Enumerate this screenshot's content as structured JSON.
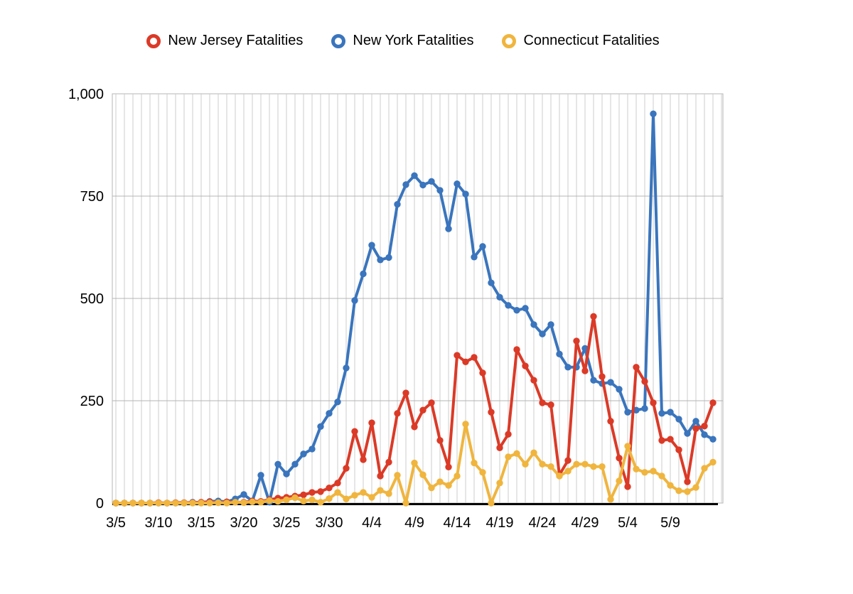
{
  "legend": {
    "items": [
      {
        "label": "New Jersey Fatalities",
        "color": "#db3a27"
      },
      {
        "label": "New York Fatalities",
        "color": "#3a75bd"
      },
      {
        "label": "Connecticut Fatalities",
        "color": "#f0b53e"
      }
    ]
  },
  "colors": {
    "background": "#ffffff",
    "grid_vertical": "#cccccc",
    "grid_horizontal": "#b5b5b5",
    "plot_border": "#b5b5b5",
    "axis_line": "#000000",
    "text": "#000000"
  },
  "chart_data": {
    "type": "line",
    "title": "",
    "xlabel": "",
    "ylabel": "",
    "ylim": [
      0,
      1000
    ],
    "grid": "daily vertical gridlines; horizontal gridlines every 250",
    "legend_position": "top",
    "marker": "filled-circle",
    "dates": [
      "3/5",
      "3/6",
      "3/7",
      "3/8",
      "3/9",
      "3/10",
      "3/11",
      "3/12",
      "3/13",
      "3/14",
      "3/15",
      "3/16",
      "3/17",
      "3/18",
      "3/19",
      "3/20",
      "3/21",
      "3/22",
      "3/23",
      "3/24",
      "3/25",
      "3/26",
      "3/27",
      "3/28",
      "3/29",
      "3/30",
      "3/31",
      "4/1",
      "4/2",
      "4/3",
      "4/4",
      "4/5",
      "4/6",
      "4/7",
      "4/8",
      "4/9",
      "4/10",
      "4/11",
      "4/12",
      "4/13",
      "4/14",
      "4/15",
      "4/16",
      "4/17",
      "4/18",
      "4/19",
      "4/20",
      "4/21",
      "4/22",
      "4/23",
      "4/24",
      "4/25",
      "4/26",
      "4/27",
      "4/28",
      "4/29",
      "4/30",
      "5/1",
      "5/2",
      "5/3",
      "5/4",
      "5/5",
      "5/6",
      "5/7",
      "5/8",
      "5/9",
      "5/10",
      "5/11",
      "5/12",
      "5/13",
      "5/14"
    ],
    "x_ticks": [
      {
        "day_index": 0,
        "label": "3/5"
      },
      {
        "day_index": 5,
        "label": "3/10"
      },
      {
        "day_index": 10,
        "label": "3/15"
      },
      {
        "day_index": 15,
        "label": "3/20"
      },
      {
        "day_index": 20,
        "label": "3/25"
      },
      {
        "day_index": 25,
        "label": "3/30"
      },
      {
        "day_index": 30,
        "label": "4/4"
      },
      {
        "day_index": 35,
        "label": "4/9"
      },
      {
        "day_index": 40,
        "label": "4/14"
      },
      {
        "day_index": 45,
        "label": "4/19"
      },
      {
        "day_index": 50,
        "label": "4/24"
      },
      {
        "day_index": 55,
        "label": "4/29"
      },
      {
        "day_index": 60,
        "label": "5/4"
      },
      {
        "day_index": 65,
        "label": "5/9"
      }
    ],
    "y_ticks": [
      {
        "value": 0,
        "label": "0"
      },
      {
        "value": 250,
        "label": "250"
      },
      {
        "value": 500,
        "label": "500"
      },
      {
        "value": 750,
        "label": "750"
      },
      {
        "value": 1000,
        "label": "1,000"
      }
    ],
    "series": [
      {
        "name": "New York Fatalities",
        "color": "#3a75bd",
        "values": [
          0,
          0,
          0,
          0,
          0,
          0,
          0,
          0,
          0,
          2,
          1,
          4,
          5,
          3,
          10,
          21,
          5,
          68,
          2,
          95,
          71,
          95,
          120,
          132,
          187,
          219,
          247,
          330,
          495,
          560,
          630,
          594,
          600,
          730,
          778,
          800,
          777,
          786,
          764,
          670,
          780,
          755,
          601,
          627,
          538,
          503,
          483,
          471,
          476,
          436,
          413,
          436,
          364,
          332,
          332,
          378,
          300,
          292,
          295,
          278,
          222,
          227,
          231,
          951,
          219,
          222,
          205,
          170,
          200,
          167,
          156
        ]
      },
      {
        "name": "New Jersey Fatalities",
        "color": "#db3a27",
        "values": [
          0,
          0,
          0,
          0,
          0,
          1,
          0,
          1,
          1,
          1,
          2,
          3,
          1,
          3,
          2,
          2,
          5,
          4,
          8,
          12,
          14,
          17,
          20,
          26,
          28,
          37,
          49,
          85,
          175,
          106,
          196,
          66,
          100,
          219,
          269,
          186,
          227,
          245,
          153,
          88,
          361,
          345,
          356,
          318,
          222,
          135,
          168,
          375,
          335,
          300,
          245,
          240,
          69,
          104,
          396,
          323,
          456,
          309,
          200,
          110,
          40,
          332,
          297,
          245,
          153,
          156,
          130,
          52,
          182,
          188,
          245
        ]
      },
      {
        "name": "Connecticut Fatalities",
        "color": "#f0b53e",
        "values": [
          0,
          0,
          0,
          0,
          0,
          0,
          0,
          0,
          0,
          0,
          0,
          0,
          1,
          0,
          2,
          1,
          3,
          2,
          6,
          4,
          8,
          13,
          5,
          8,
          2,
          11,
          26,
          10,
          19,
          26,
          14,
          31,
          23,
          68,
          0,
          98,
          69,
          37,
          52,
          43,
          66,
          193,
          98,
          75,
          0,
          49,
          113,
          121,
          95,
          123,
          95,
          89,
          66,
          78,
          95,
          95,
          89,
          89,
          9,
          54,
          139,
          83,
          75,
          78,
          66,
          43,
          30,
          28,
          38,
          85,
          100
        ]
      }
    ]
  }
}
